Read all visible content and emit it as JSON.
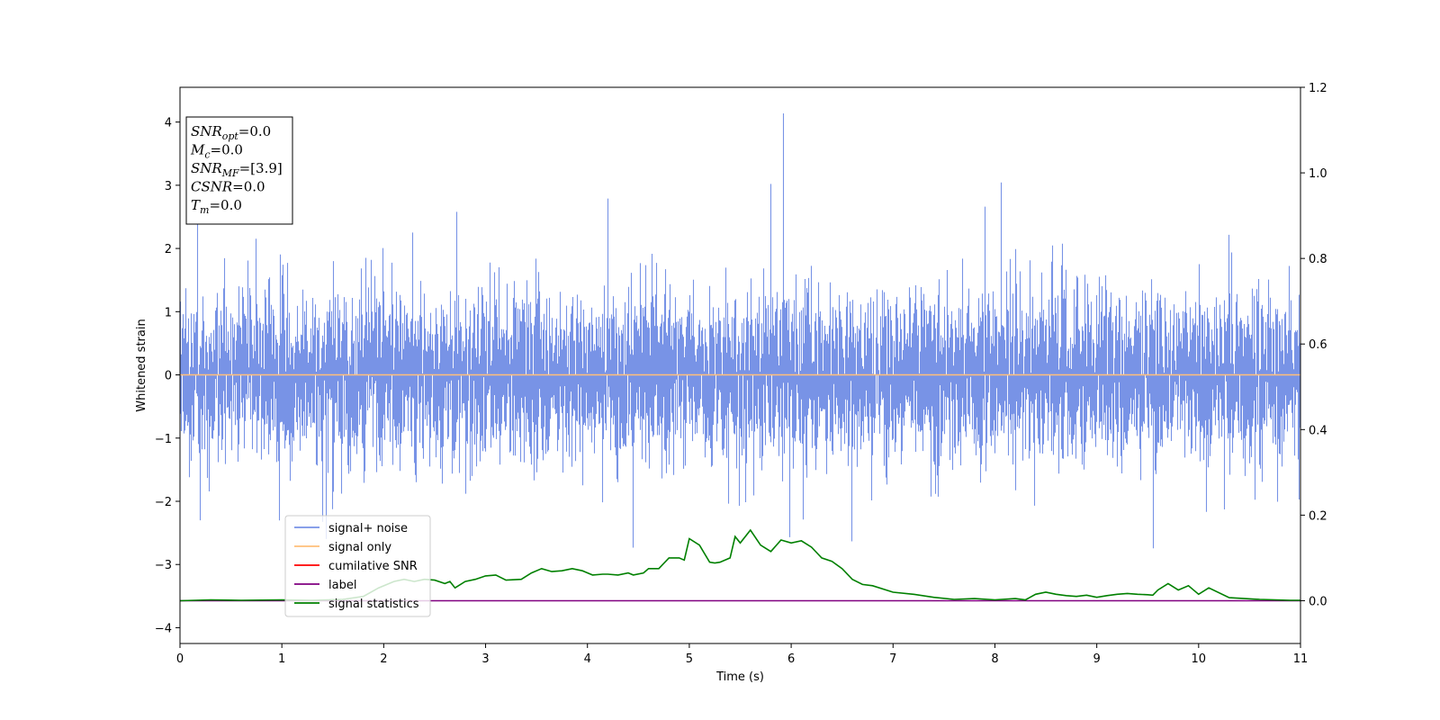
{
  "chart_data": {
    "type": "line",
    "xlabel": "Time (s)",
    "ylabel": "Whitened strain",
    "xlim": [
      0,
      11
    ],
    "ylim_left": [
      -4.25,
      4.55
    ],
    "ylim_right": [
      -0.1,
      1.2
    ],
    "x_ticks": [
      "0",
      "1",
      "2",
      "3",
      "4",
      "5",
      "6",
      "7",
      "8",
      "9",
      "10",
      "11"
    ],
    "y_ticks_left": [
      "−4",
      "−3",
      "−2",
      "−1",
      "0",
      "1",
      "2",
      "3",
      "4"
    ],
    "y_ticks_right": [
      "0.0",
      "0.2",
      "0.4",
      "0.6",
      "0.8",
      "1.0",
      "1.2"
    ],
    "grid": false,
    "legend_position": "lower-left",
    "info_box": {
      "lines": [
        {
          "base": "SNR",
          "sub": "opt",
          "value": "=0.0"
        },
        {
          "base": "M",
          "sub": "c",
          "value": "=0.0"
        },
        {
          "base": "SNR",
          "sub": "MF",
          "value": "=[3.9]"
        },
        {
          "base": "CSNR",
          "sub": "",
          "value": "=0.0"
        },
        {
          "base": "T",
          "sub": "m",
          "value": "=0.0"
        }
      ]
    },
    "series": [
      {
        "name": "signal+ noise",
        "color": "#7893e6",
        "axis": "left",
        "description_values": "noise band roughly ±2 with spikes up to ±4"
      },
      {
        "name": "signal only",
        "color": "#ffbf7a",
        "axis": "left",
        "values_constant": 0.0
      },
      {
        "name": "cumilative SNR",
        "color": "#ff0000",
        "axis": "right",
        "values_constant": 0.0
      },
      {
        "name": "label",
        "color": "#800080",
        "axis": "right",
        "values_constant": 0.0
      },
      {
        "name": "signal statistics",
        "color": "#008000",
        "axis": "right",
        "x": [
          0,
          0.3,
          0.6,
          1.0,
          1.3,
          1.6,
          1.8,
          1.95,
          2.1,
          2.2,
          2.3,
          2.4,
          2.5,
          2.6,
          2.65,
          2.7,
          2.8,
          2.9,
          3.0,
          3.1,
          3.2,
          3.35,
          3.45,
          3.55,
          3.65,
          3.75,
          3.85,
          3.95,
          4.05,
          4.15,
          4.2,
          4.3,
          4.4,
          4.45,
          4.55,
          4.6,
          4.7,
          4.8,
          4.9,
          4.95,
          5.0,
          5.1,
          5.2,
          5.25,
          5.3,
          5.4,
          5.45,
          5.5,
          5.6,
          5.7,
          5.8,
          5.9,
          6.0,
          6.1,
          6.2,
          6.3,
          6.4,
          6.5,
          6.6,
          6.7,
          6.8,
          7.0,
          7.2,
          7.4,
          7.6,
          7.8,
          8.0,
          8.2,
          8.3,
          8.4,
          8.5,
          8.6,
          8.7,
          8.8,
          8.9,
          9.0,
          9.1,
          9.2,
          9.3,
          9.4,
          9.5,
          9.55,
          9.6,
          9.7,
          9.8,
          9.9,
          10.0,
          10.1,
          10.3,
          10.6,
          10.9,
          11.0
        ],
        "values": [
          0.0,
          0.002,
          0.001,
          0.002,
          0.001,
          0.003,
          0.01,
          0.03,
          0.045,
          0.05,
          0.045,
          0.05,
          0.048,
          0.04,
          0.045,
          0.03,
          0.045,
          0.05,
          0.058,
          0.06,
          0.048,
          0.05,
          0.065,
          0.075,
          0.068,
          0.07,
          0.075,
          0.07,
          0.06,
          0.062,
          0.062,
          0.06,
          0.065,
          0.06,
          0.065,
          0.075,
          0.075,
          0.1,
          0.1,
          0.095,
          0.145,
          0.13,
          0.09,
          0.088,
          0.09,
          0.1,
          0.15,
          0.135,
          0.165,
          0.13,
          0.115,
          0.142,
          0.135,
          0.14,
          0.125,
          0.1,
          0.092,
          0.075,
          0.05,
          0.038,
          0.035,
          0.02,
          0.015,
          0.008,
          0.003,
          0.005,
          0.002,
          0.005,
          0.002,
          0.015,
          0.02,
          0.015,
          0.012,
          0.01,
          0.013,
          0.008,
          0.012,
          0.015,
          0.017,
          0.015,
          0.014,
          0.013,
          0.025,
          0.04,
          0.025,
          0.035,
          0.015,
          0.03,
          0.007,
          0.003,
          0.001,
          0.001
        ]
      }
    ]
  }
}
